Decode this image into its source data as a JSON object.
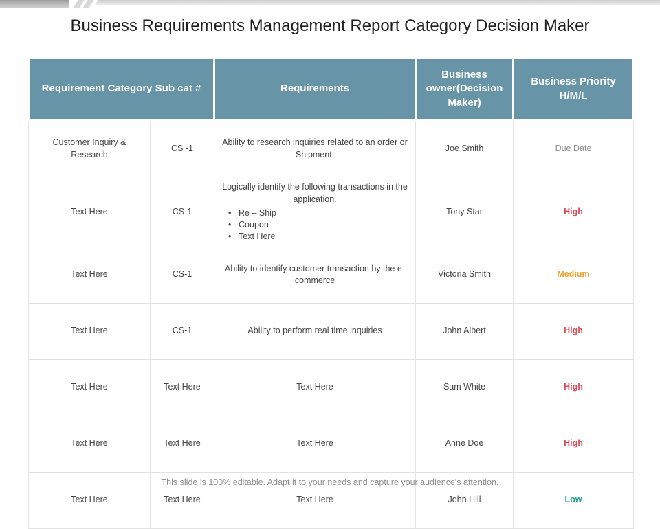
{
  "slide": {
    "title": "Business Requirements Management Report Category Decision Maker",
    "footer": "This slide is 100% editable. Adapt it to your needs and capture your audience's attention."
  },
  "colors": {
    "header_bg": "#6794a6",
    "header_text": "#ffffff",
    "priority_high": "#dd4a55",
    "priority_medium": "#eca22d",
    "priority_low": "#2a9d90",
    "priority_due_date": "#8b8b8b",
    "body_text": "#454545",
    "cell_border": "#e2e2e2"
  },
  "table": {
    "headers": [
      {
        "label": "Requirement Category Sub cat #"
      },
      {
        "label": "Requirements"
      },
      {
        "label": "Business owner(Decision Maker)"
      },
      {
        "label": "Business Priority H/M/L"
      }
    ],
    "rows": [
      {
        "category": "Customer Inquiry & Research",
        "subcat": "CS -1",
        "requirement": "Ability to research inquiries related to an order or Shipment.",
        "bullets": [],
        "owner": "Joe Smith",
        "priority": {
          "label": "Due Date",
          "color": "#8b8b8b",
          "bold": false
        }
      },
      {
        "category": "Text Here",
        "subcat": "CS-1",
        "requirement": "Logically identify the following transactions in the application.",
        "bullets": [
          "Re – Ship",
          "Coupon",
          "Text Here"
        ],
        "owner": "Tony Star",
        "priority": {
          "label": "High",
          "color": "#dd4a55",
          "bold": true
        }
      },
      {
        "category": "Text Here",
        "subcat": "CS-1",
        "requirement": "Ability to identify customer transaction by the e-commerce",
        "bullets": [],
        "owner": "Victoria Smith",
        "priority": {
          "label": "Medium",
          "color": "#eca22d",
          "bold": true
        }
      },
      {
        "category": "Text Here",
        "subcat": "CS-1",
        "requirement": "Ability to perform real time inquiries",
        "bullets": [],
        "owner": "John Albert",
        "priority": {
          "label": "High",
          "color": "#dd4a55",
          "bold": true
        }
      },
      {
        "category": "Text Here",
        "subcat": "Text Here",
        "requirement": "Text Here",
        "bullets": [],
        "owner": "Sam White",
        "priority": {
          "label": "High",
          "color": "#dd4a55",
          "bold": true
        }
      },
      {
        "category": "Text Here",
        "subcat": "Text Here",
        "requirement": "Text Here",
        "bullets": [],
        "owner": "Anne Doe",
        "priority": {
          "label": "High",
          "color": "#dd4a55",
          "bold": true
        }
      },
      {
        "category": "Text Here",
        "subcat": "Text Here",
        "requirement": "Text Here",
        "bullets": [],
        "owner": "John Hill",
        "priority": {
          "label": "Low",
          "color": "#2a9d90",
          "bold": true
        }
      }
    ]
  }
}
